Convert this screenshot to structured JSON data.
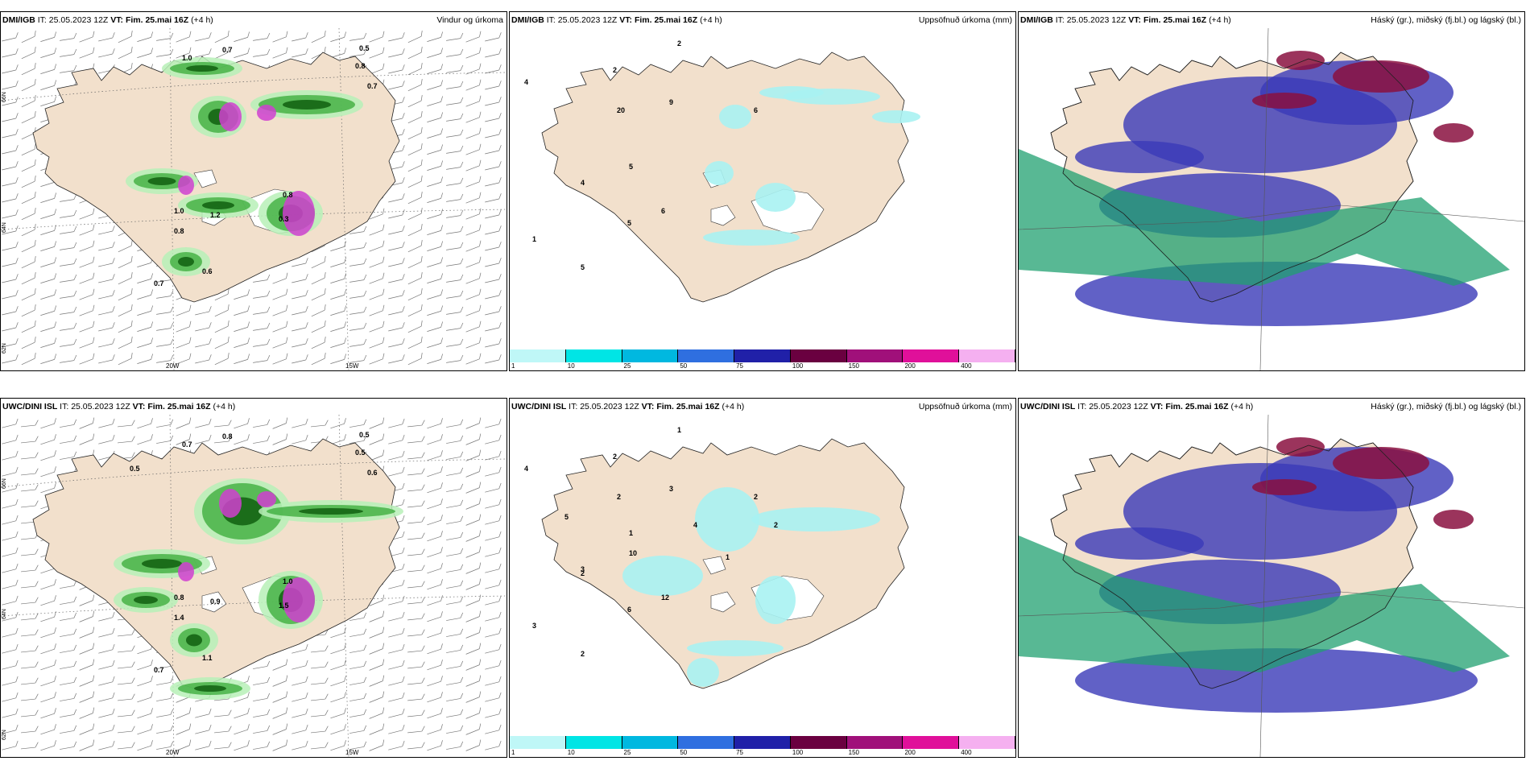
{
  "panels": [
    {
      "id": "p1",
      "model": "DMI/IGB",
      "it_label": "IT:",
      "it": "25.05.2023 12Z",
      "vt_label": "VT:",
      "vt": "Fim. 25.mai 16Z",
      "lead": "(+4 h)",
      "right_title": "Vindur og úrkoma",
      "kind": "wind"
    },
    {
      "id": "p2",
      "model": "DMI/IGB",
      "it_label": "IT:",
      "it": "25.05.2023 12Z",
      "vt_label": "VT:",
      "vt": "Fim. 25.mai 16Z",
      "lead": "(+4 h)",
      "right_title": "Uppsöfnuð úrkoma (mm)",
      "kind": "accum"
    },
    {
      "id": "p3",
      "model": "DMI/IGB",
      "it_label": "IT:",
      "it": "25.05.2023 12Z",
      "vt_label": "VT:",
      "vt": "Fim. 25.mai 16Z",
      "lead": "(+4 h)",
      "right_title": "Háský (gr.), miðský (fj.bl.) og lágský (bl.)",
      "kind": "cloud"
    },
    {
      "id": "p4",
      "model": "UWC/DINI ISL",
      "it_label": "IT:",
      "it": "25.05.2023 12Z",
      "vt_label": "VT:",
      "vt": "Fim. 25.mai 16Z",
      "lead": "(+4 h)",
      "right_title": "",
      "kind": "wind"
    },
    {
      "id": "p5",
      "model": "UWC/DINI ISL",
      "it_label": "IT:",
      "it": "25.05.2023 12Z",
      "vt_label": "VT:",
      "vt": "Fim. 25.mai 16Z",
      "lead": "(+4 h)",
      "right_title": "Uppsöfnuð úrkoma (mm)",
      "kind": "accum"
    },
    {
      "id": "p6",
      "model": "UWC/DINI ISL",
      "it_label": "IT:",
      "it": "25.05.2023 12Z",
      "vt_label": "VT:",
      "vt": "Fim. 25.mai 16Z",
      "lead": "(+4 h)",
      "right_title": "Háský (gr.), miðský (fj.bl.) og lágský (bl.)",
      "kind": "cloud"
    }
  ],
  "colorbar": {
    "colors": [
      "#bff7f7",
      "#00e5e5",
      "#00b8e0",
      "#2f6fe0",
      "#2020a8",
      "#6a0040",
      "#a0107a",
      "#e0109a",
      "#f5b0f0"
    ],
    "labels": [
      "1",
      "10",
      "25",
      "50",
      "75",
      "100",
      "150",
      "200",
      "400"
    ]
  },
  "map_labels": {
    "lon_20w": "20W",
    "lon_15w": "15W",
    "lat_66n": "66N",
    "lat_64n": "64N",
    "lat_62n": "62N"
  },
  "colors": {
    "land": "#f2e0cc",
    "precip_light": "#b7f0b7",
    "precip_mid": "#3fae3f",
    "precip_dark": "#0b5a0b",
    "precip_magenta": "#d040d0",
    "accum_light": "#a8f2f2",
    "cloud_high": "#8a1040",
    "cloud_mid": "#3a3ab8",
    "cloud_low": "#20a070"
  },
  "wind_values": {
    "p1": [
      "1.0",
      "0.7",
      "0.5",
      "0.7",
      "1.0",
      "0.7",
      "0.8",
      "0.8",
      "1.2",
      "0.6",
      "0.8",
      "0.3"
    ],
    "p4": [
      "0.7",
      "0.8",
      "0.5",
      "0.6",
      "0.8",
      "0.7",
      "1.4",
      "1.0",
      "0.9",
      "1.1",
      "0.5",
      "1.5",
      "0.5"
    ]
  },
  "accum_values": {
    "p2": [
      "2",
      "2",
      "4",
      "20",
      "9",
      "5",
      "6",
      "5",
      "4",
      "5",
      "6",
      "1"
    ],
    "p5": [
      "1",
      "2",
      "4",
      "2",
      "3",
      "10",
      "12",
      "6",
      "3",
      "2",
      "2",
      "3",
      "5",
      "4",
      "1",
      "2",
      "1",
      "2"
    ]
  }
}
